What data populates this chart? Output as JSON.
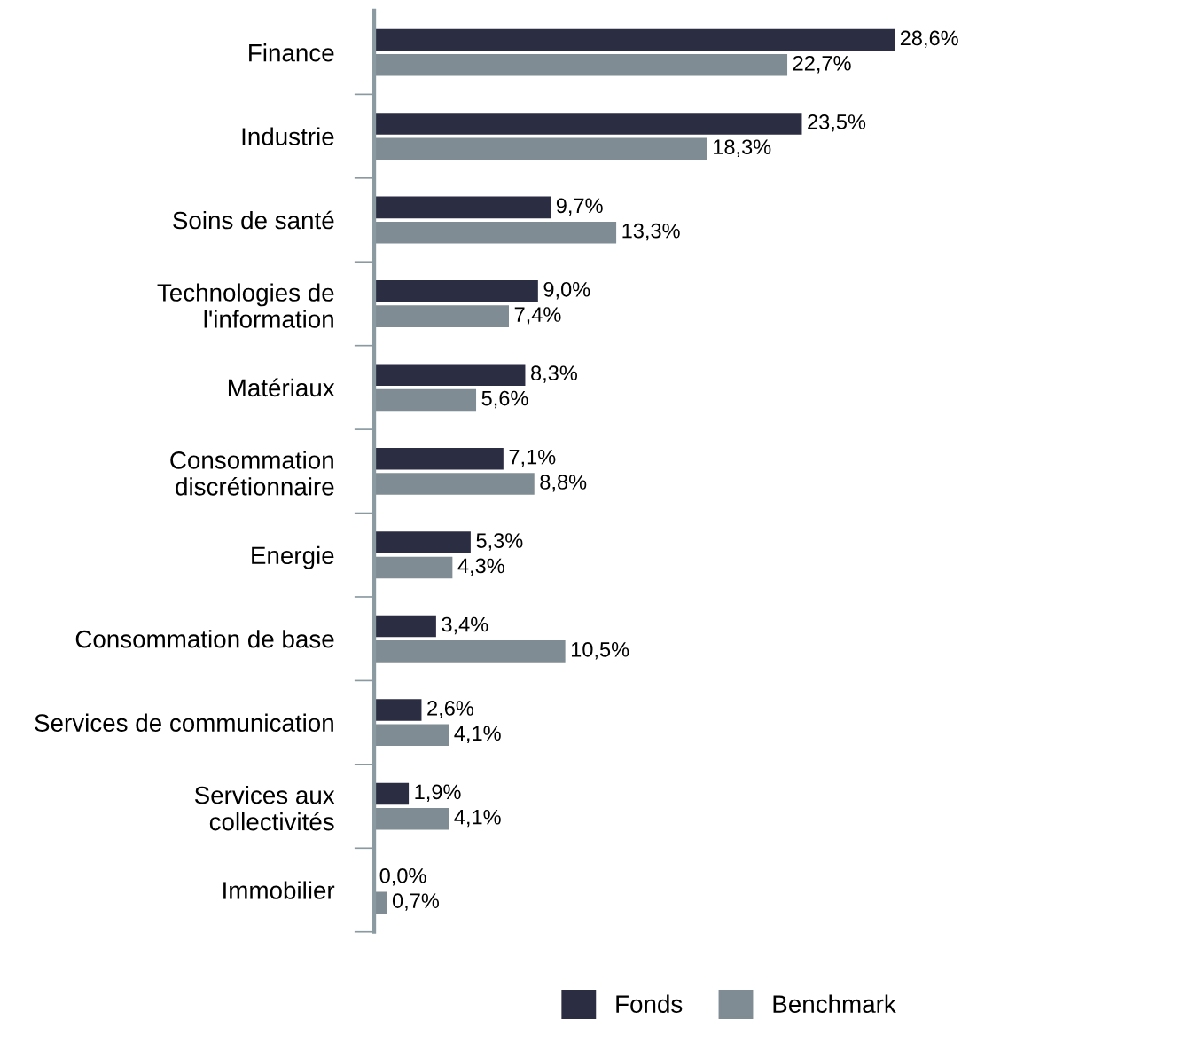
{
  "chart_data": {
    "type": "bar",
    "orientation": "horizontal",
    "categories": [
      "Finance",
      "Industrie",
      "Soins de santé",
      "Technologies de\nl'information",
      "Matériaux",
      "Consommation\ndiscrétionnaire",
      "Energie",
      "Consommation de base",
      "Services de communication",
      "Services aux\ncollectivités",
      "Immobilier"
    ],
    "series": [
      {
        "name": "Fonds",
        "color": "#2b2d42",
        "values": [
          28.6,
          23.5,
          9.7,
          9.0,
          8.3,
          7.1,
          5.3,
          3.4,
          2.6,
          1.9,
          0.0
        ],
        "value_labels": [
          "28,6%",
          "23,5%",
          "9,7%",
          "9,0%",
          "8,3%",
          "7,1%",
          "5,3%",
          "3,4%",
          "2,6%",
          "1,9%",
          "0,0%"
        ]
      },
      {
        "name": "Benchmark",
        "color": "#7f8c93",
        "values": [
          22.7,
          18.3,
          13.3,
          7.4,
          5.6,
          8.8,
          4.3,
          10.5,
          4.1,
          4.1,
          0.7
        ],
        "value_labels": [
          "22,7%",
          "18,3%",
          "13,3%",
          "7,4%",
          "5,6%",
          "8,8%",
          "4,3%",
          "10,5%",
          "4,1%",
          "4,1%",
          "0,7%"
        ]
      }
    ],
    "grid": false,
    "legend": "bottom",
    "tick_labels": "y"
  }
}
